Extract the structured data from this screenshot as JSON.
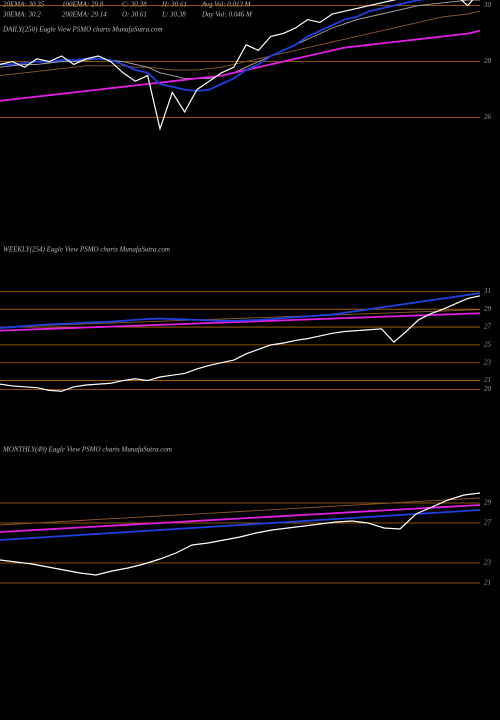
{
  "header": {
    "stats": [
      [
        "20EMA: 30.35",
        "100EMA: 29.8",
        "C: 30.38",
        "H: 30.61",
        "Avg Vol: 0.013 M"
      ],
      [
        "30EMA: 30.2",
        "200EMA: 29.14",
        "O: 30.61",
        "L: 30.38",
        "Day Vol: 0.046 M"
      ]
    ]
  },
  "chart_data": [
    {
      "type": "line",
      "title": "DAILY(250) Eagle  View  PSMO charts MunafaSutra.com",
      "ylim": [
        22.7,
        30.2
      ],
      "yticks": [
        30,
        28,
        26
      ],
      "grid": true,
      "series": [
        {
          "color": "#8a5a2a",
          "values": [
            27.5,
            27.55,
            27.6,
            27.65,
            27.7,
            27.75,
            27.8,
            27.85,
            27.85,
            27.85,
            27.85,
            27.8,
            27.8,
            27.75,
            27.7,
            27.7,
            27.7,
            27.75,
            27.8,
            27.9,
            28.0,
            28.1,
            28.2,
            28.3,
            28.4,
            28.5,
            28.6,
            28.7,
            28.8,
            28.9,
            29.0,
            29.1,
            29.2,
            29.3,
            29.4,
            29.5,
            29.6,
            29.65,
            29.7,
            29.8
          ]
        },
        {
          "color": "#aaaaaa",
          "values": [
            27.8,
            27.85,
            27.9,
            27.9,
            27.95,
            28.0,
            28.0,
            28.05,
            28.1,
            28.05,
            28.0,
            27.9,
            27.8,
            27.6,
            27.5,
            27.4,
            27.4,
            27.4,
            27.5,
            27.6,
            27.8,
            28.0,
            28.2,
            28.4,
            28.6,
            28.8,
            29.0,
            29.2,
            29.35,
            29.5,
            29.6,
            29.7,
            29.8,
            29.9,
            30.0,
            30.05,
            30.1,
            30.15,
            30.2,
            30.2
          ]
        },
        {
          "color": "#e020e0",
          "values": [
            26.6,
            26.65,
            26.7,
            26.75,
            26.8,
            26.85,
            26.9,
            26.95,
            27.0,
            27.05,
            27.1,
            27.15,
            27.2,
            27.25,
            27.3,
            27.35,
            27.4,
            27.45,
            27.5,
            27.6,
            27.7,
            27.8,
            27.9,
            28.0,
            28.1,
            28.2,
            28.3,
            28.4,
            28.5,
            28.55,
            28.6,
            28.65,
            28.7,
            28.75,
            28.8,
            28.85,
            28.9,
            28.95,
            29.0,
            29.1
          ]
        },
        {
          "color": "#2040e0",
          "values": [
            27.9,
            27.9,
            27.95,
            28.0,
            28.0,
            28.05,
            28.05,
            28.1,
            28.1,
            28.05,
            27.9,
            27.7,
            27.6,
            27.2,
            27.1,
            27.0,
            26.95,
            27.0,
            27.2,
            27.4,
            27.7,
            27.9,
            28.2,
            28.4,
            28.6,
            28.9,
            29.1,
            29.3,
            29.5,
            29.6,
            29.8,
            29.9,
            30.0,
            30.1,
            30.2,
            30.25,
            30.3,
            30.35,
            30.35,
            30.4
          ]
        },
        {
          "color": "#ffffff",
          "values": [
            27.9,
            28.0,
            27.8,
            28.1,
            28.0,
            28.2,
            27.9,
            28.1,
            28.2,
            28.0,
            27.6,
            27.3,
            27.5,
            25.6,
            26.9,
            26.2,
            27.0,
            27.3,
            27.6,
            27.8,
            28.6,
            28.4,
            28.9,
            29.0,
            29.2,
            29.5,
            29.4,
            29.7,
            29.8,
            29.9,
            30.0,
            30.1,
            30.2,
            30.3,
            30.3,
            30.4,
            30.5,
            30.4,
            30.0,
            30.5
          ]
        }
      ]
    },
    {
      "type": "line",
      "title": "WEEKLY(254) Eagle  View  PSMO charts MunafaSutra.com",
      "ylim": [
        17.7,
        39
      ],
      "yticks": [
        31,
        29,
        27,
        25,
        23,
        21,
        20
      ],
      "grid": true,
      "series": [
        {
          "color": "#8a5a2a",
          "values": [
            27.0,
            27.05,
            27.1,
            27.15,
            27.2,
            27.25,
            27.3,
            27.35,
            27.4,
            27.45,
            27.5,
            27.55,
            27.6,
            27.65,
            27.7,
            27.75,
            27.8,
            27.85,
            27.9,
            27.95,
            28.0,
            28.05,
            28.1,
            28.15,
            28.2,
            28.25,
            28.3,
            28.35,
            28.4,
            28.45,
            28.5,
            28.55,
            28.6,
            28.65,
            28.7,
            28.75,
            28.8,
            28.85,
            28.9,
            28.95
          ]
        },
        {
          "color": "#e020e0",
          "values": [
            26.6,
            26.65,
            26.7,
            26.75,
            26.8,
            26.85,
            26.9,
            26.95,
            27.0,
            27.05,
            27.1,
            27.15,
            27.2,
            27.25,
            27.3,
            27.35,
            27.4,
            27.45,
            27.5,
            27.55,
            27.6,
            27.65,
            27.7,
            27.75,
            27.8,
            27.85,
            27.9,
            27.95,
            28.0,
            28.05,
            28.1,
            28.15,
            28.2,
            28.25,
            28.3,
            28.35,
            28.4,
            28.45,
            28.5,
            28.55
          ]
        },
        {
          "color": "#2040e0",
          "values": [
            26.9,
            27.0,
            27.1,
            27.2,
            27.3,
            27.35,
            27.4,
            27.5,
            27.55,
            27.6,
            27.7,
            27.8,
            27.9,
            27.95,
            27.9,
            27.85,
            27.8,
            27.75,
            27.7,
            27.7,
            27.75,
            27.8,
            27.9,
            28.0,
            28.1,
            28.2,
            28.3,
            28.4,
            28.6,
            28.8,
            29.0,
            29.2,
            29.4,
            29.6,
            29.8,
            30.0,
            30.2,
            30.4,
            30.6,
            30.8
          ]
        },
        {
          "color": "#ffffff",
          "values": [
            20.6,
            20.4,
            20.3,
            20.2,
            19.9,
            19.8,
            20.3,
            20.5,
            20.6,
            20.7,
            21.0,
            21.2,
            21.0,
            21.4,
            21.6,
            21.8,
            22.3,
            22.7,
            23.0,
            23.3,
            24.0,
            24.5,
            25.0,
            25.2,
            25.5,
            25.7,
            26.0,
            26.3,
            26.5,
            26.6,
            26.7,
            26.8,
            25.3,
            26.5,
            27.8,
            28.5,
            29.0,
            29.6,
            30.2,
            30.5
          ]
        }
      ]
    },
    {
      "type": "line",
      "title": "MONTHLY(49) Eagle  View  PSMO charts MunafaSutra.com",
      "ylim": [
        7.3,
        37.3
      ],
      "yticks": [
        29,
        27,
        23,
        21
      ],
      "grid": true,
      "series": [
        {
          "color": "#8a5a2a",
          "values": [
            26.8,
            26.89,
            26.98,
            27.07,
            27.16,
            27.25,
            27.34,
            27.43,
            27.52,
            27.61,
            27.7,
            27.79,
            27.88,
            27.97,
            28.06,
            28.15,
            28.24,
            28.33,
            28.42,
            28.51,
            28.6,
            28.69,
            28.78,
            28.87,
            28.96,
            29.05,
            29.14,
            29.23,
            29.32,
            29.41,
            29.5
          ]
        },
        {
          "color": "#e020e0",
          "values": [
            26.1,
            26.19,
            26.28,
            26.37,
            26.46,
            26.55,
            26.64,
            26.73,
            26.82,
            26.91,
            27.0,
            27.09,
            27.18,
            27.27,
            27.36,
            27.45,
            27.54,
            27.63,
            27.72,
            27.81,
            27.9,
            27.99,
            28.08,
            28.17,
            28.26,
            28.35,
            28.44,
            28.53,
            28.62,
            28.71,
            28.8
          ]
        },
        {
          "color": "#2040e0",
          "values": [
            25.3,
            25.4,
            25.5,
            25.6,
            25.7,
            25.8,
            25.9,
            26.0,
            26.1,
            26.2,
            26.3,
            26.4,
            26.5,
            26.6,
            26.7,
            26.8,
            26.9,
            27.0,
            27.1,
            27.2,
            27.3,
            27.4,
            27.5,
            27.6,
            27.7,
            27.8,
            27.9,
            28.0,
            28.1,
            28.2,
            28.3
          ]
        },
        {
          "color": "#ffffff",
          "values": [
            23.3,
            23.1,
            22.9,
            22.6,
            22.3,
            22.0,
            21.8,
            22.2,
            22.5,
            22.9,
            23.4,
            24.0,
            24.8,
            25.0,
            25.3,
            25.6,
            26.0,
            26.3,
            26.5,
            26.7,
            26.9,
            27.1,
            27.2,
            27.0,
            26.5,
            26.4,
            27.9,
            28.6,
            29.3,
            29.8,
            30.0
          ]
        }
      ]
    }
  ]
}
